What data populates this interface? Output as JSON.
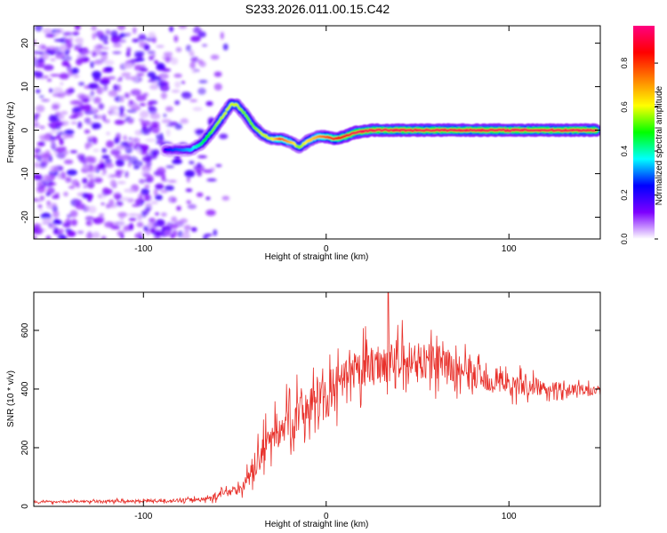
{
  "figure": {
    "title": "S233.2026.011.00.15.C42"
  },
  "chart_data": [
    {
      "type": "heatmap",
      "title": "S233.2026.011.00.15.C42",
      "xlabel": "Height of straight line (km)",
      "ylabel": "Frequency (Hz)",
      "xlim": [
        -160,
        150
      ],
      "ylim": [
        -25,
        24
      ],
      "x_ticks": [
        -100,
        0,
        100
      ],
      "x_tick_labels": [
        "-100",
        "0",
        "100"
      ],
      "y_ticks": [
        -20,
        -10,
        0,
        10,
        20
      ],
      "y_tick_labels": [
        "-20",
        "-10",
        "0",
        "10",
        "20"
      ],
      "ridge": {
        "description": "dominant spectral ridge",
        "x": [
          -88,
          -80,
          -74,
          -68,
          -62,
          -56,
          -52,
          -49,
          -45,
          -40,
          -35,
          -30,
          -25,
          -18,
          -15,
          -10,
          -5,
          0,
          5,
          10,
          16,
          25,
          60,
          100,
          148
        ],
        "y": [
          -4.5,
          -4.5,
          -4.5,
          -3,
          0,
          3.5,
          6,
          5.8,
          4,
          1,
          -1,
          -2,
          -2,
          -3,
          -4,
          -2.5,
          -1.5,
          -1.5,
          -2,
          -1.5,
          -0.5,
          0,
          0,
          0,
          0
        ],
        "amplitude": [
          0.25,
          0.3,
          0.35,
          0.45,
          0.55,
          0.6,
          0.6,
          0.6,
          0.55,
          0.55,
          0.6,
          0.6,
          0.8,
          0.65,
          0.55,
          0.65,
          0.7,
          0.8,
          0.85,
          0.9,
          0.95,
          0.95,
          0.95,
          0.95,
          0.95
        ]
      },
      "noise_region": {
        "x_range": [
          -160,
          -55
        ],
        "amplitude": 0.15
      },
      "colorbar": {
        "label": "Normalized spectral amplitude",
        "range": [
          0.0,
          0.97
        ],
        "ticks": [
          0.0,
          0.2,
          0.4,
          0.6,
          0.8
        ],
        "tick_labels": [
          "0.0",
          "0.2",
          "0.4",
          "0.6",
          "0.8"
        ],
        "colors": [
          "#ffffff",
          "#7d00ff",
          "#0000ff",
          "#00ffff",
          "#00ff00",
          "#ffff00",
          "#ff8000",
          "#ff0000",
          "#ff0080"
        ]
      }
    },
    {
      "type": "line",
      "title": "",
      "xlabel": "Height of straight line (km)",
      "ylabel": "SNR (10 * v/v)",
      "xlim": [
        -160,
        150
      ],
      "ylim": [
        0,
        730
      ],
      "x_ticks": [
        -100,
        0,
        100
      ],
      "x_tick_labels": [
        "-100",
        "0",
        "100"
      ],
      "y_ticks": [
        0,
        200,
        400,
        600
      ],
      "y_tick_labels": [
        "0",
        "200",
        "400",
        "600"
      ],
      "color": "#e8302a",
      "trend": {
        "x": [
          -160,
          -80,
          -65,
          -58,
          -52,
          -46,
          -40,
          -30,
          -20,
          -10,
          0,
          10,
          20,
          30,
          40,
          50,
          60,
          70,
          80,
          90,
          100,
          110,
          120,
          130,
          140,
          150
        ],
        "y": [
          15,
          20,
          25,
          40,
          55,
          60,
          130,
          240,
          290,
          350,
          380,
          420,
          470,
          490,
          500,
          500,
          490,
          470,
          450,
          430,
          420,
          410,
          405,
          400,
          395,
          395
        ]
      },
      "noise": [
        5,
        8,
        12,
        20,
        25,
        25,
        60,
        90,
        100,
        110,
        110,
        110,
        105,
        100,
        100,
        95,
        90,
        80,
        70,
        60,
        55,
        45,
        35,
        30,
        25,
        25
      ],
      "peak": {
        "x": 34,
        "y": 730
      }
    }
  ]
}
